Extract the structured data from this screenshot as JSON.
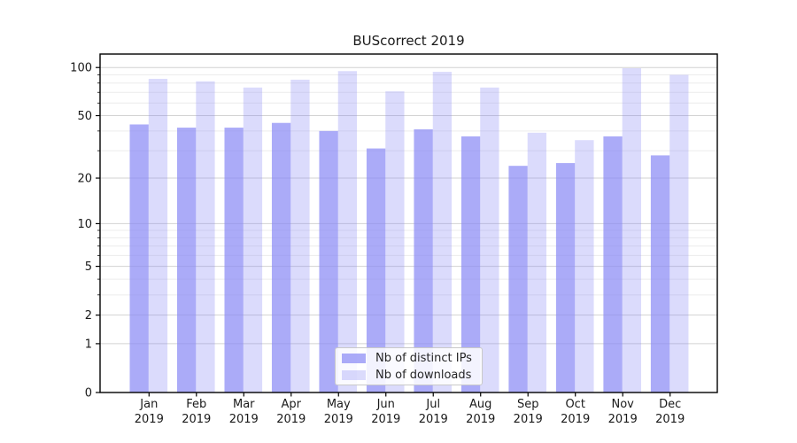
{
  "chart_data": {
    "type": "bar",
    "title": "BUScorrect 2019",
    "categories": [
      "Jan",
      "Feb",
      "Mar",
      "Apr",
      "May",
      "Jun",
      "Jul",
      "Aug",
      "Sep",
      "Oct",
      "Nov",
      "Dec"
    ],
    "year_label": "2019",
    "series": [
      {
        "name": "Nb of distinct IPs",
        "key": "distinct-ips",
        "color": "#8787f5",
        "alpha": 0.7,
        "values": [
          44,
          42,
          42,
          45,
          40,
          31,
          41,
          37,
          24,
          25,
          37,
          28
        ]
      },
      {
        "name": "Nb of downloads",
        "key": "downloads",
        "color": "#8787f5",
        "alpha": 0.3,
        "values": [
          85,
          82,
          75,
          84,
          95,
          71,
          94,
          75,
          39,
          35,
          99,
          90
        ]
      }
    ],
    "xlabel": "",
    "ylabel": "",
    "yscale": "log1p",
    "ylim": [
      0,
      120
    ],
    "yticks": [
      0,
      1,
      2,
      5,
      10,
      20,
      50,
      100
    ],
    "yminorticks": [
      3,
      4,
      6,
      7,
      8,
      9,
      30,
      40,
      60,
      70,
      80,
      90
    ],
    "grid": true,
    "legend_position": "lower-center"
  },
  "colors": {
    "grid_major": "#d2d2d2",
    "grid_minor": "#ececec",
    "spine": "#000000",
    "tick_text": "#1a1a1a"
  }
}
